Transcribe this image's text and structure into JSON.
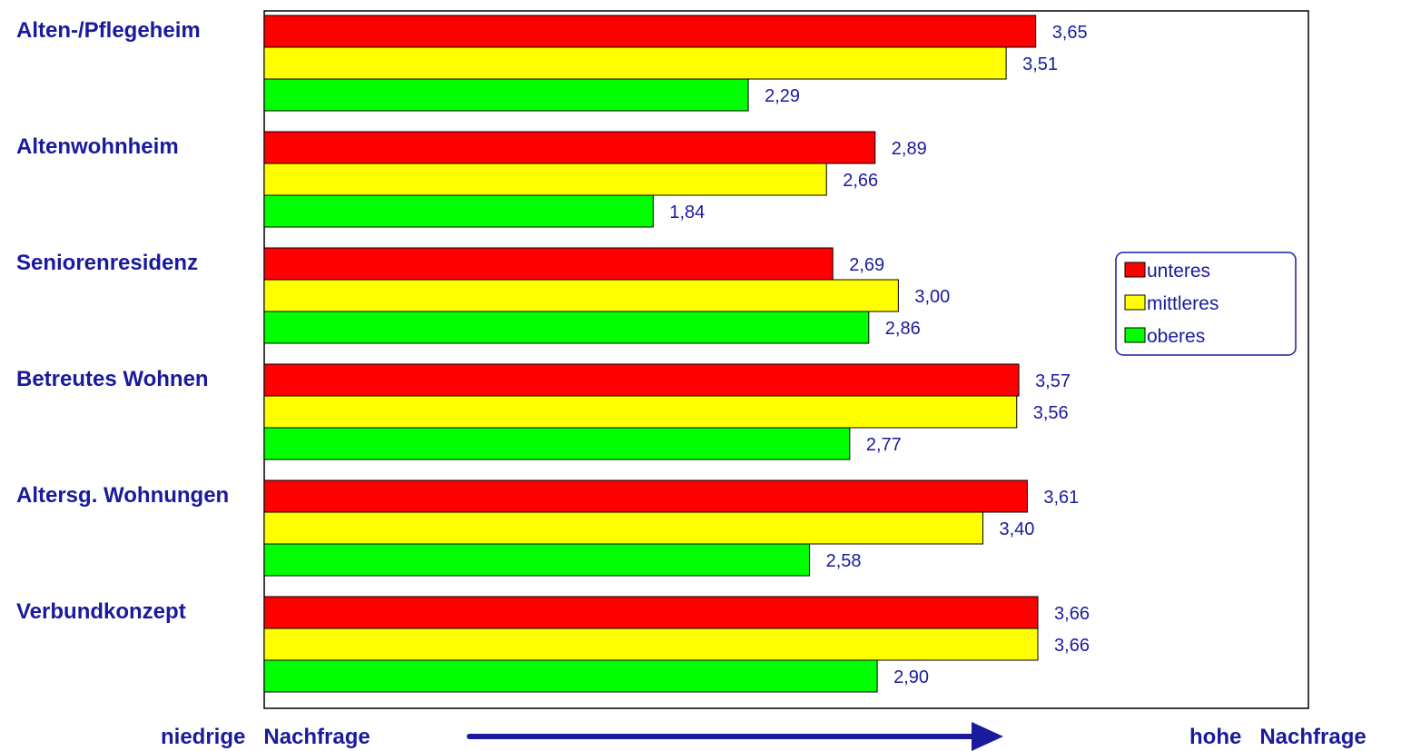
{
  "chart_data": {
    "type": "bar",
    "orientation": "horizontal",
    "categories": [
      "Alten-/Pflegeheim",
      "Altenwohnheim",
      "Seniorenresidenz",
      "Betreutes Wohnen",
      "Altersg. Wohnungen",
      "Verbundkonzept"
    ],
    "series": [
      {
        "name": "unteres",
        "color": "#ff0000",
        "values": [
          3.65,
          2.89,
          2.69,
          3.57,
          3.61,
          3.66
        ],
        "labels": [
          "3,65",
          "2,89",
          "2,69",
          "3,57",
          "3,61",
          "3,66"
        ]
      },
      {
        "name": "mittleres",
        "color": "#ffff00",
        "values": [
          3.51,
          2.66,
          3.0,
          3.56,
          3.4,
          3.66
        ],
        "labels": [
          "3,51",
          "2,66",
          "3,00",
          "3,56",
          "3,40",
          "3,66"
        ]
      },
      {
        "name": "oberes",
        "color": "#00ff00",
        "values": [
          2.29,
          1.84,
          2.86,
          2.77,
          2.58,
          2.9
        ],
        "labels": [
          "2,29",
          "1,84",
          "2,86",
          "2,77",
          "2,58",
          "2,90"
        ]
      }
    ],
    "xlim": [
      0,
      4.94
    ],
    "grid": false,
    "legend_position": "right"
  },
  "footer": {
    "left_label": "niedrige   Nachfrage",
    "right_label": "hohe   Nachfrage",
    "arrow_color": "#1a1a9c"
  },
  "colors": {
    "text": "#1a1a9c",
    "border": "#000000"
  }
}
